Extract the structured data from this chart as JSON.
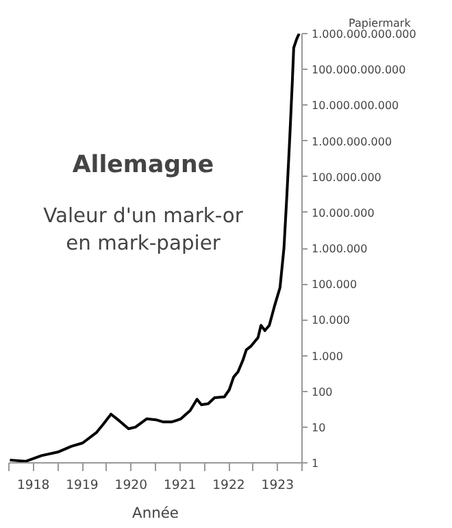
{
  "chart_data": {
    "type": "line",
    "title": "Allemagne",
    "subtitle": "Valeur d'un mark-or\nen mark-papier",
    "xlabel": "Année",
    "ylabel": "Papiermark",
    "x": [
      1918.02,
      1918.34,
      1918.67,
      1919.0,
      1919.28,
      1919.51,
      1919.79,
      1919.93,
      1920.09,
      1920.26,
      1920.45,
      1920.59,
      1920.82,
      1921.01,
      1921.15,
      1921.34,
      1921.52,
      1921.71,
      1921.85,
      1921.94,
      1922.08,
      1922.21,
      1922.41,
      1922.51,
      1922.6,
      1922.69,
      1922.79,
      1922.86,
      1922.95,
      1923.1,
      1923.16,
      1923.24,
      1923.33,
      1923.44,
      1923.55,
      1923.63,
      1923.69,
      1923.75,
      1923.8,
      1923.83,
      1923.89,
      1923.94
    ],
    "series": [
      {
        "color": "#000000",
        "values": [
          1.2,
          1.1,
          1.6,
          2,
          2.9,
          3.6,
          7,
          12,
          23,
          15,
          9,
          10,
          17,
          16,
          14,
          14,
          17,
          29,
          60,
          42,
          45,
          66,
          70,
          110,
          250,
          350,
          740,
          1450,
          1800,
          3200,
          7000,
          5000,
          7000,
          25000,
          80000,
          1000000,
          30000000,
          1300000000,
          40000000000,
          400000000000,
          700000000000,
          1000000000000
        ]
      }
    ],
    "log": "y",
    "grid": false,
    "line_style": "solid",
    "xlim": [
      1918,
      1924
    ],
    "xticks": [
      {
        "value": 1918,
        "label": null
      },
      {
        "value": 1918.5,
        "label": "1918"
      },
      {
        "value": 1919,
        "label": null
      },
      {
        "value": 1919.5,
        "label": "1919"
      },
      {
        "value": 1920,
        "label": null
      },
      {
        "value": 1920.5,
        "label": "1920"
      },
      {
        "value": 1921,
        "label": null
      },
      {
        "value": 1921.5,
        "label": "1921"
      },
      {
        "value": 1922,
        "label": null
      },
      {
        "value": 1922.5,
        "label": "1922"
      },
      {
        "value": 1923,
        "label": null
      },
      {
        "value": 1923.5,
        "label": "1923"
      },
      {
        "value": 1924,
        "label": null
      }
    ],
    "ylim": [
      1,
      1000000000000
    ],
    "yticks": [
      1,
      10,
      100,
      {
        "value": 1000,
        "label": "1.000"
      },
      {
        "value": 10000,
        "label": "10.000"
      },
      {
        "value": 100000,
        "label": "100.000"
      },
      {
        "value": 1000000,
        "label": "1.000.000"
      },
      {
        "value": 10000000,
        "label": "10.000.000"
      },
      {
        "value": 100000000,
        "label": "100.000.000"
      },
      {
        "value": 1000000000,
        "label": "1.000.000.000"
      },
      {
        "value": 10000000000,
        "label": "10.000.000.000"
      },
      {
        "value": 100000000000,
        "label": "100.000.000.000"
      },
      {
        "value": 1000000000000,
        "label": "1.000.000.000.000"
      }
    ]
  }
}
